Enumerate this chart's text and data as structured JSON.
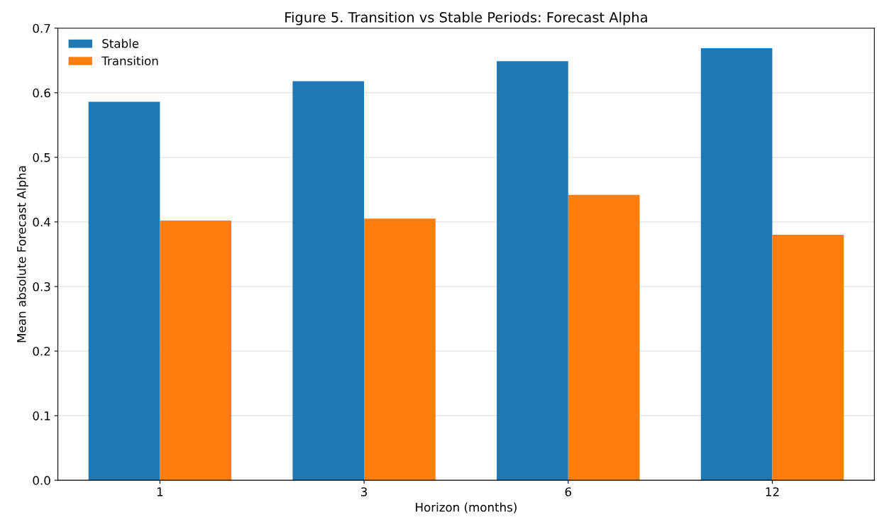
{
  "chart_data": {
    "type": "bar",
    "title": "Figure 5. Transition vs Stable Periods: Forecast Alpha",
    "xlabel": "Horizon (months)",
    "ylabel": "Mean absolute Forecast Alpha",
    "categories": [
      "1",
      "3",
      "6",
      "12"
    ],
    "series": [
      {
        "name": "Stable",
        "color": "#1f77b4",
        "values": [
          0.586,
          0.618,
          0.649,
          0.669
        ]
      },
      {
        "name": "Transition",
        "color": "#ff7f0e",
        "values": [
          0.402,
          0.405,
          0.442,
          0.38
        ]
      }
    ],
    "ylim": [
      0,
      0.7
    ],
    "yticks": [
      {
        "value": 0,
        "label": "0.0"
      },
      {
        "value": 0.1,
        "label": "0.1"
      },
      {
        "value": 0.2,
        "label": "0.2"
      },
      {
        "value": 0.3,
        "label": "0.3"
      },
      {
        "value": 0.4,
        "label": "0.4"
      },
      {
        "value": 0.5,
        "label": "0.5"
      },
      {
        "value": 0.6,
        "label": "0.6"
      },
      {
        "value": 0.7,
        "label": "0.7"
      }
    ],
    "grid": "y",
    "legend": "top left"
  }
}
